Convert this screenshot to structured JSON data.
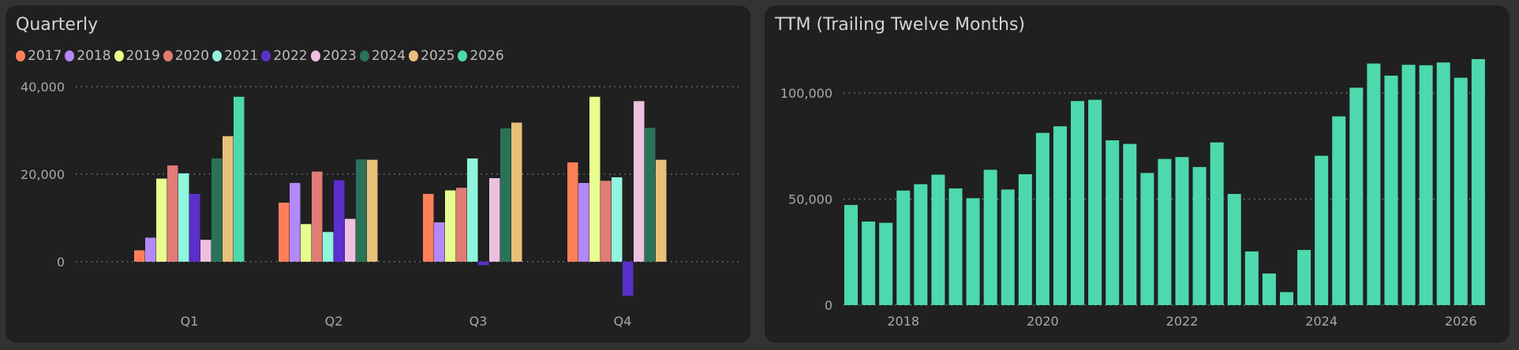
{
  "chart_data": [
    {
      "type": "bar",
      "title": "Quarterly",
      "categories": [
        "Q1",
        "Q2",
        "Q3",
        "Q4"
      ],
      "y_ticks": [
        {
          "value": 0,
          "label": "0"
        },
        {
          "value": 20000,
          "label": "20,000"
        },
        {
          "value": 40000,
          "label": "40,000"
        }
      ],
      "ylim": [
        -10000,
        40000
      ],
      "grid": true,
      "legend_placement": "top-left",
      "series": [
        {
          "name": "2017",
          "color": "#ff7f5a",
          "values": [
            2600,
            13500,
            15500,
            22700
          ]
        },
        {
          "name": "2018",
          "color": "#b388f8",
          "values": [
            5500,
            18000,
            9000,
            18000
          ]
        },
        {
          "name": "2019",
          "color": "#e8ff8f",
          "values": [
            19000,
            8600,
            16300,
            37700
          ]
        },
        {
          "name": "2020",
          "color": "#e07b75",
          "values": [
            22000,
            20600,
            16900,
            18500
          ]
        },
        {
          "name": "2021",
          "color": "#8ff5dc",
          "values": [
            20200,
            6800,
            23600,
            19300
          ]
        },
        {
          "name": "2022",
          "color": "#5a2fcc",
          "values": [
            15500,
            18600,
            -800,
            -7800
          ]
        },
        {
          "name": "2023",
          "color": "#edc0e0",
          "values": [
            5000,
            9800,
            19100,
            36700
          ]
        },
        {
          "name": "2024",
          "color": "#2a7358",
          "values": [
            23600,
            23400,
            30500,
            30600
          ]
        },
        {
          "name": "2025",
          "color": "#e8c07a",
          "values": [
            28700,
            23300,
            31800,
            23300
          ]
        },
        {
          "name": "2026",
          "color": "#4dd9ad",
          "values": [
            37700,
            null,
            null,
            null
          ]
        }
      ]
    },
    {
      "type": "bar",
      "title": "TTM (Trailing Twelve Months)",
      "color": "#4dd9ad",
      "x_first": "2017 Q2",
      "x_ticks": [
        {
          "index": 3,
          "label": "2018"
        },
        {
          "index": 11,
          "label": "2020"
        },
        {
          "index": 19,
          "label": "2022"
        },
        {
          "index": 27,
          "label": "2024"
        },
        {
          "index": 35,
          "label": "2026"
        }
      ],
      "y_ticks": [
        {
          "value": 0,
          "label": "0"
        },
        {
          "value": 50000,
          "label": "50,000"
        },
        {
          "value": 100000,
          "label": "100,000"
        }
      ],
      "ylim": [
        0,
        120000
      ],
      "grid": true,
      "values": [
        47200,
        39400,
        38800,
        54000,
        57000,
        61500,
        55000,
        50400,
        63800,
        54500,
        61700,
        81200,
        84300,
        96200,
        96800,
        77700,
        76000,
        62300,
        68900,
        69800,
        65100,
        76700,
        52400,
        25300,
        14900,
        6100,
        26000,
        70400,
        89000,
        102500,
        113900,
        108200,
        113300,
        113100,
        114400,
        107200,
        116000
      ]
    }
  ]
}
